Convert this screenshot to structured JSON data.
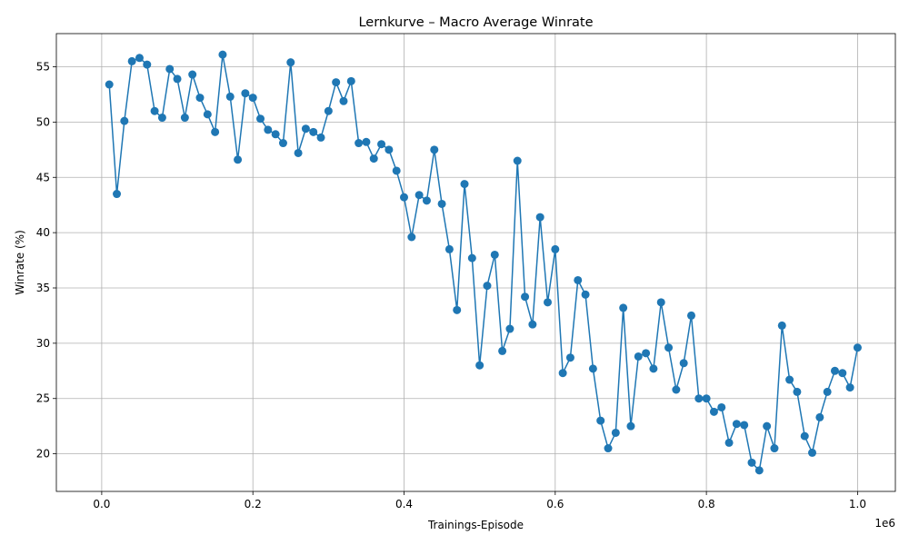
{
  "chart_data": {
    "type": "line",
    "title": "Lernkurve – Macro Average Winrate",
    "xlabel": "Trainings-Episode",
    "ylabel": "Winrate (%)",
    "x_offset_label": "1e6",
    "xlim": [
      -60000,
      1050000
    ],
    "ylim": [
      16.6,
      58
    ],
    "x_ticks": [
      0,
      200000,
      400000,
      600000,
      800000,
      1000000
    ],
    "x_tick_labels": [
      "0.0",
      "0.2",
      "0.4",
      "0.6",
      "0.8",
      "1.0"
    ],
    "y_ticks": [
      20,
      25,
      30,
      35,
      40,
      45,
      50,
      55
    ],
    "y_tick_labels": [
      "20",
      "25",
      "30",
      "35",
      "40",
      "45",
      "50",
      "55"
    ],
    "grid": true,
    "line_color": "#1f77b4",
    "marker": "circle",
    "x": [
      10000,
      20000,
      30000,
      40000,
      50000,
      60000,
      70000,
      80000,
      90000,
      100000,
      110000,
      120000,
      130000,
      140000,
      150000,
      160000,
      170000,
      180000,
      190000,
      200000,
      210000,
      220000,
      230000,
      240000,
      250000,
      260000,
      270000,
      280000,
      290000,
      300000,
      310000,
      320000,
      330000,
      340000,
      350000,
      360000,
      370000,
      380000,
      390000,
      400000,
      410000,
      420000,
      430000,
      440000,
      450000,
      460000,
      470000,
      480000,
      490000,
      500000,
      510000,
      520000,
      530000,
      540000,
      550000,
      560000,
      570000,
      580000,
      590000,
      600000,
      610000,
      620000,
      630000,
      640000,
      650000,
      660000,
      670000,
      680000,
      690000,
      700000,
      710000,
      720000,
      730000,
      740000,
      750000,
      760000,
      770000,
      780000,
      790000,
      800000,
      810000,
      820000,
      830000,
      840000,
      850000,
      860000,
      870000,
      880000,
      890000,
      900000,
      910000,
      920000,
      930000,
      940000,
      950000,
      960000,
      970000,
      980000,
      990000,
      1000000
    ],
    "series": [
      {
        "values": [
          53.4,
          43.5,
          50.1,
          55.5,
          55.8,
          55.2,
          51.0,
          50.4,
          54.8,
          53.9,
          50.4,
          54.3,
          52.2,
          50.7,
          49.1,
          56.1,
          52.3,
          46.6,
          52.6,
          52.2,
          50.3,
          49.3,
          48.9,
          48.1,
          55.4,
          47.2,
          49.4,
          49.1,
          48.6,
          51.0,
          53.6,
          51.9,
          53.7,
          48.1,
          48.2,
          46.7,
          48.0,
          47.5,
          45.6,
          43.2,
          39.6,
          43.4,
          42.9,
          47.5,
          42.6,
          38.5,
          33.0,
          44.4,
          37.7,
          28.0,
          35.2,
          38.0,
          29.3,
          31.3,
          46.5,
          34.2,
          31.7,
          41.4,
          33.7,
          38.5,
          27.3,
          28.7,
          35.7,
          34.4,
          27.7,
          23.0,
          20.5,
          21.9,
          33.2,
          22.5,
          28.8,
          29.1,
          27.7,
          33.7,
          29.6,
          25.8,
          28.2,
          32.5,
          25.0,
          25.0,
          23.8,
          24.2,
          21.0,
          22.7,
          22.6,
          19.2,
          18.5,
          22.5,
          20.5,
          31.6,
          26.7,
          25.6,
          21.6,
          20.1,
          23.3,
          25.6,
          27.5,
          27.3,
          26.0,
          29.6
        ]
      }
    ]
  }
}
